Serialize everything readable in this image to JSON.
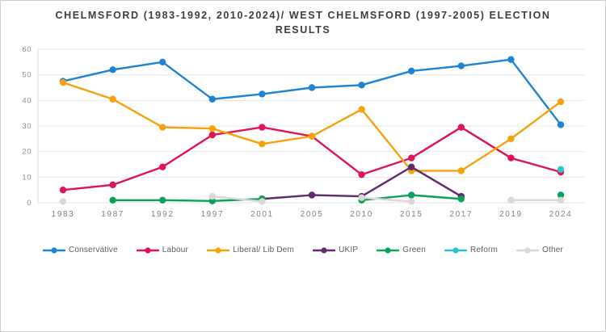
{
  "title": {
    "line1": "CHELMSFORD (1983-1992, 2010-2024)/ WEST CHELMSFORD (1997-2005) ELECTION",
    "line2": "RESULTS"
  },
  "chart_data": {
    "type": "line",
    "title": "CHELMSFORD (1983-1992, 2010-2024)/ WEST CHELMSFORD (1997-2005) ELECTION RESULTS",
    "categories": [
      "1983",
      "1987",
      "1992",
      "1997",
      "2001",
      "2005",
      "2010",
      "2015",
      "2017",
      "2019",
      "2024"
    ],
    "series": [
      {
        "name": "Conservative",
        "color": "#1d83d4",
        "values": [
          47.5,
          52,
          55,
          40.5,
          42.5,
          45,
          46,
          51.5,
          53.5,
          56,
          30.5
        ]
      },
      {
        "name": "Labour",
        "color": "#e31253",
        "values": [
          5,
          7,
          14,
          26.5,
          29.5,
          26,
          11,
          17.5,
          29.5,
          17.5,
          12
        ]
      },
      {
        "name": "Liberal/ Lib Dem",
        "color": "#f6a20f",
        "values": [
          47,
          40.5,
          29.5,
          29,
          23,
          26,
          36.5,
          12.5,
          12.5,
          25,
          39.5
        ]
      },
      {
        "name": "UKIP",
        "color": "#5e2b6f",
        "values": [
          null,
          null,
          null,
          null,
          1.5,
          3,
          2.5,
          14,
          2.5,
          null,
          null
        ]
      },
      {
        "name": "Green",
        "color": "#0aa259",
        "values": [
          null,
          1,
          1,
          0.7,
          1.5,
          null,
          1,
          3,
          1.5,
          null,
          3
        ]
      },
      {
        "name": "Reform",
        "color": "#2cc3ce",
        "values": [
          null,
          null,
          null,
          null,
          null,
          null,
          null,
          null,
          null,
          null,
          13
        ]
      },
      {
        "name": "Other",
        "color": "#d8d8d8",
        "values": [
          0.5,
          null,
          null,
          2.5,
          0.5,
          null,
          2,
          0.5,
          null,
          1,
          1
        ]
      }
    ],
    "ylim": [
      0,
      60
    ],
    "yticks": [
      0,
      10,
      20,
      30,
      40,
      50,
      60
    ],
    "xlabel": "",
    "ylabel": "",
    "grid": true,
    "legend_position": "bottom",
    "grid_color": "#e4e4e4",
    "axis_line_color": "#dcdcdc",
    "tick_label_color": "#8c8c8c",
    "title_color": "#3d3d3d",
    "background_color": "#ffffff"
  }
}
